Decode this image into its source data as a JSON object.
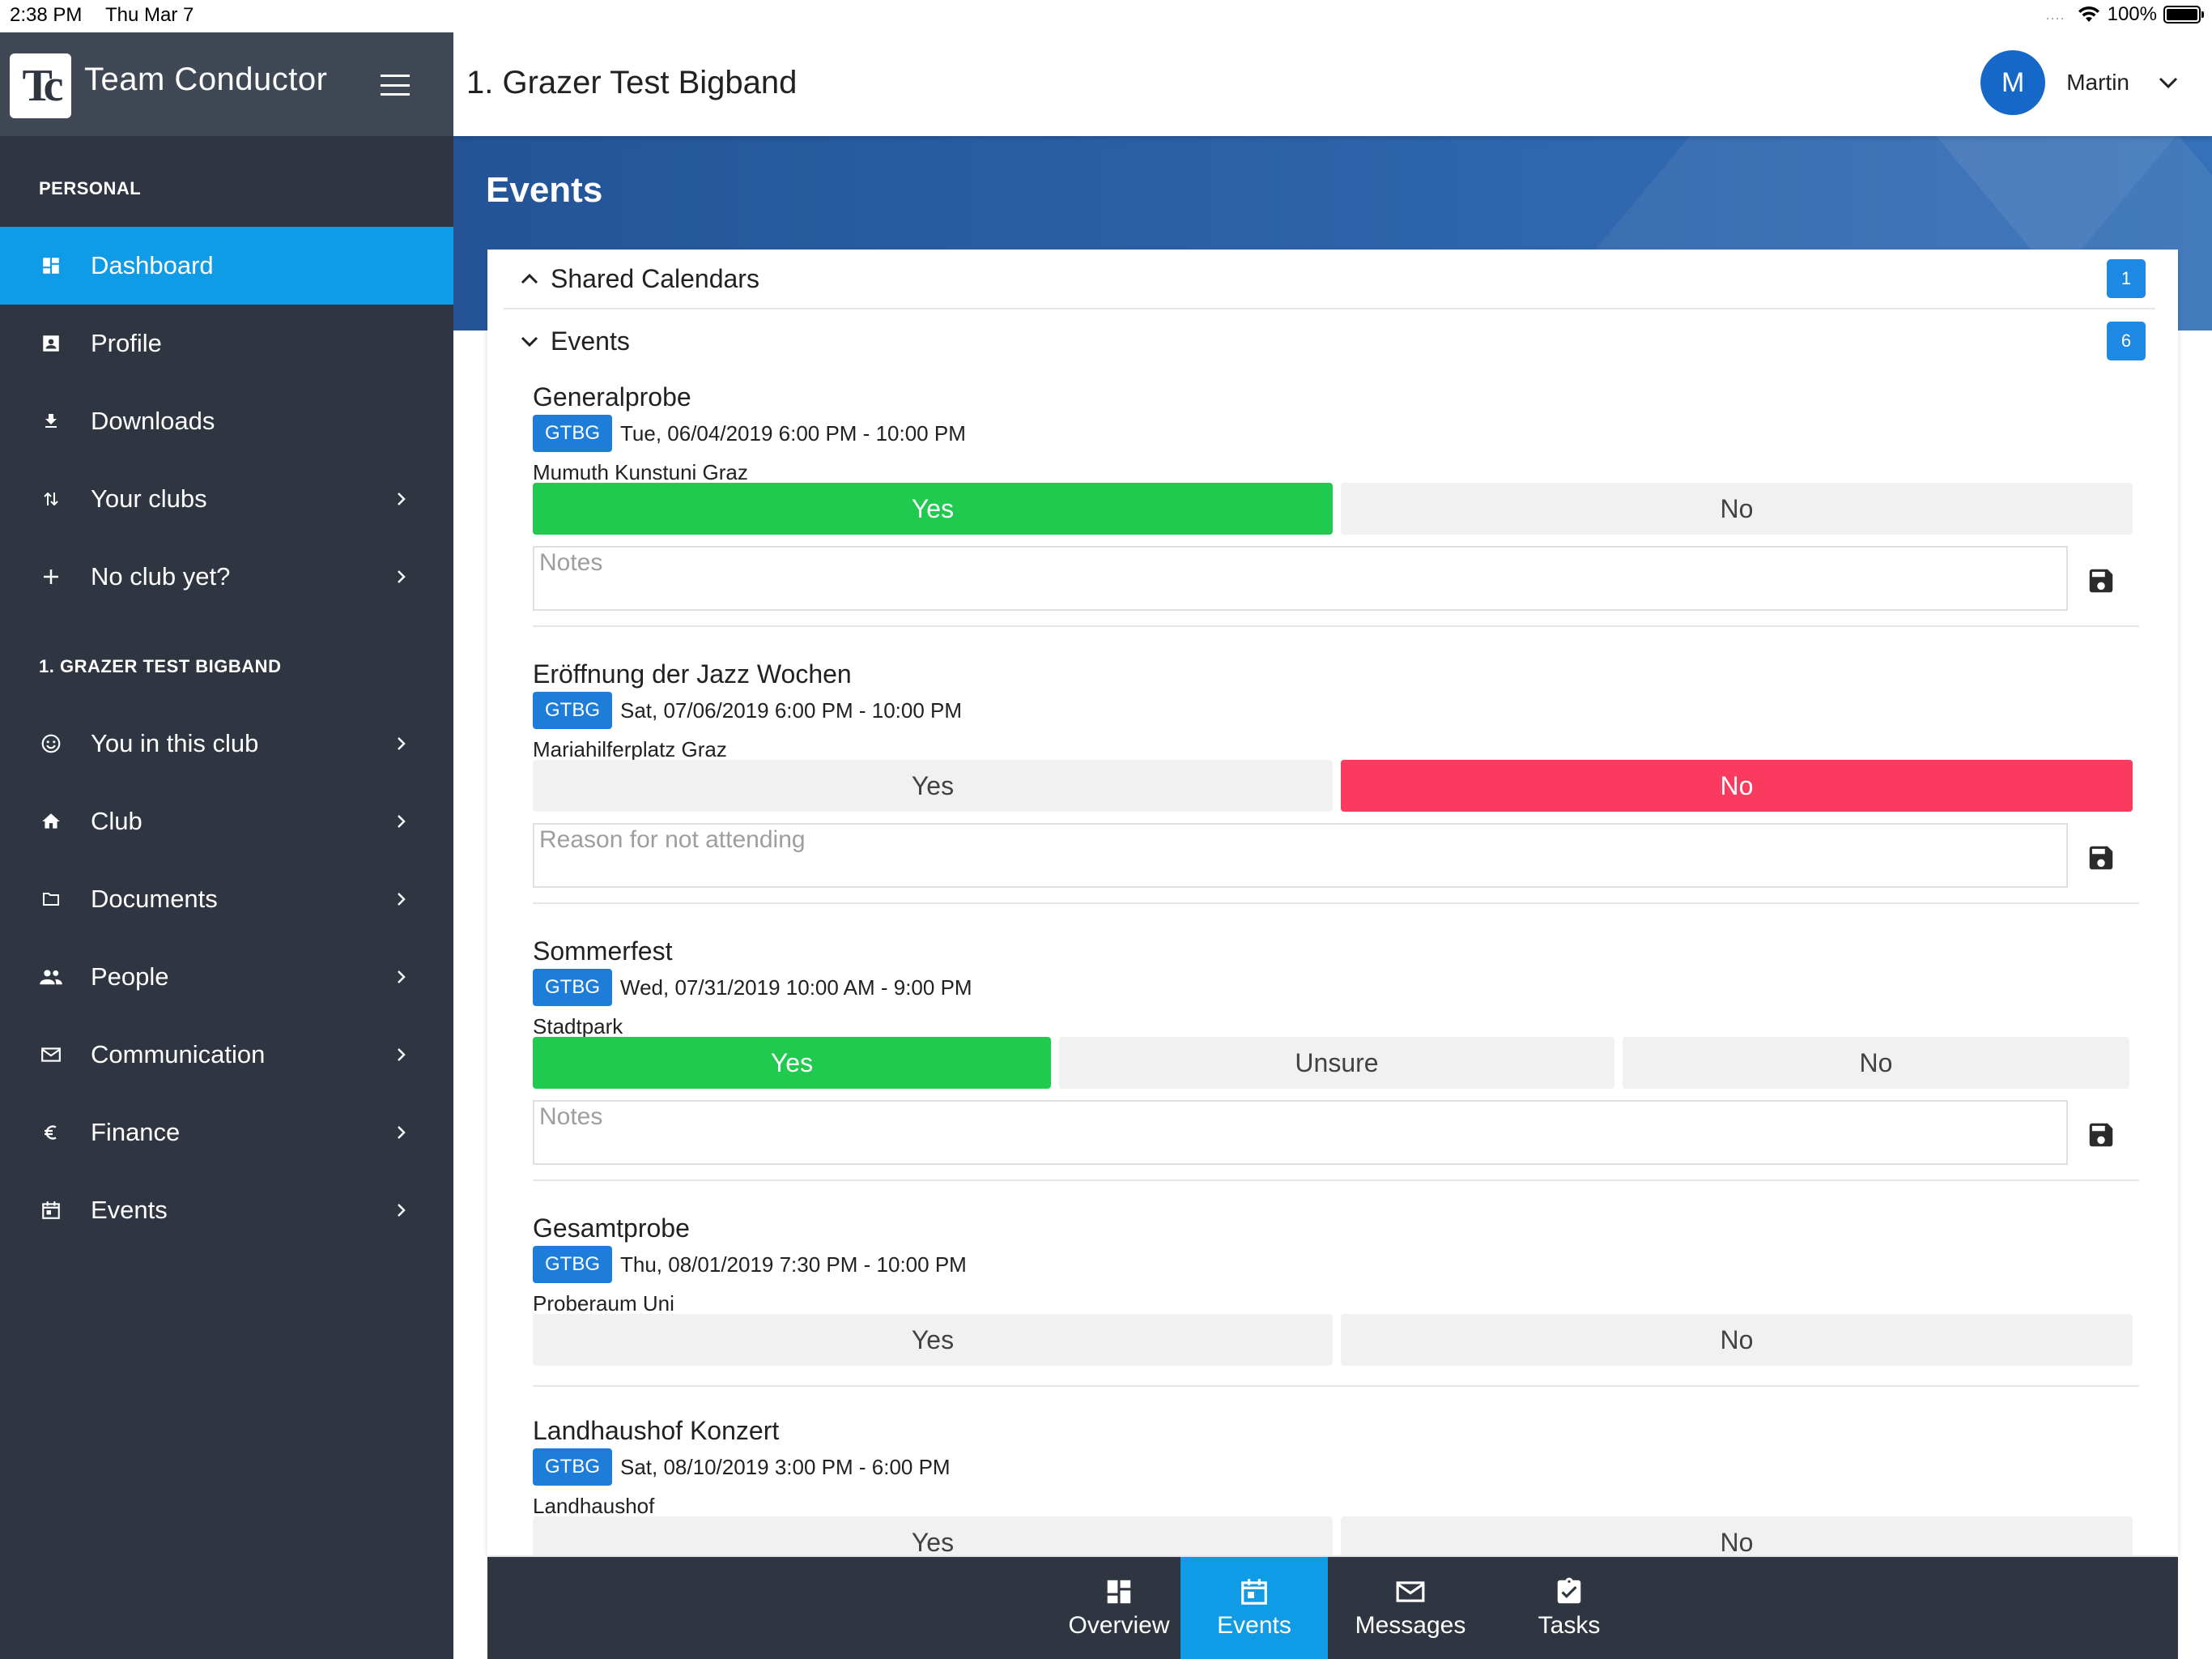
{
  "status_bar": {
    "time": "2:38 PM",
    "date": "Thu Mar 7",
    "dots": "....",
    "battery": "100%"
  },
  "sidebar": {
    "app_title": "Team Conductor",
    "logo_text": "Tc",
    "section_personal": "PERSONAL",
    "personal_items": [
      {
        "label": "Dashboard",
        "icon": "dashboard-icon"
      },
      {
        "label": "Profile",
        "icon": "profile-icon"
      },
      {
        "label": "Downloads",
        "icon": "download-icon"
      },
      {
        "label": "Your clubs",
        "icon": "clubs-icon"
      },
      {
        "label": "No club yet?",
        "icon": "plus-icon"
      }
    ],
    "section_club": "1. GRAZER TEST BIGBAND",
    "club_items": [
      {
        "label": "You in this club",
        "icon": "smile-icon"
      },
      {
        "label": "Club",
        "icon": "home-icon"
      },
      {
        "label": "Documents",
        "icon": "folder-icon"
      },
      {
        "label": "People",
        "icon": "people-icon"
      },
      {
        "label": "Communication",
        "icon": "mail-icon"
      },
      {
        "label": "Finance",
        "icon": "euro-icon"
      },
      {
        "label": "Events",
        "icon": "calendar-icon"
      }
    ]
  },
  "header": {
    "club_title": "1. Grazer Test Bigband",
    "user_initial": "M",
    "user_name": "Martin"
  },
  "page": {
    "heading": "Events"
  },
  "panels": {
    "shared_calendars": {
      "title": "Shared Calendars",
      "count": "1"
    },
    "events": {
      "title": "Events",
      "count": "6"
    }
  },
  "events": [
    {
      "name": "Generalprobe",
      "club": "GTBG",
      "date": "Tue, 06/04/2019 6:00 PM - 10:00 PM",
      "location": "Mumuth Kunstuni Graz",
      "yes": "Yes",
      "no": "No",
      "notes_placeholder": "Notes"
    },
    {
      "name": "Eröffnung der Jazz Wochen",
      "club": "GTBG",
      "date": "Sat, 07/06/2019 6:00 PM - 10:00 PM",
      "location": "Mariahilferplatz Graz",
      "yes": "Yes",
      "no": "No",
      "notes_placeholder": "Reason for not attending"
    },
    {
      "name": "Sommerfest",
      "club": "GTBG",
      "date": "Wed, 07/31/2019 10:00 AM - 9:00 PM",
      "location": "Stadtpark",
      "yes": "Yes",
      "unsure": "Unsure",
      "no": "No",
      "notes_placeholder": "Notes"
    },
    {
      "name": "Gesamtprobe",
      "club": "GTBG",
      "date": "Thu, 08/01/2019 7:30 PM - 10:00 PM",
      "location": "Proberaum Uni",
      "yes": "Yes",
      "no": "No"
    },
    {
      "name": "Landhaushof Konzert",
      "club": "GTBG",
      "date": "Sat, 08/10/2019 3:00 PM - 6:00 PM",
      "location": "Landhaushof",
      "yes": "Yes",
      "no": "No"
    }
  ],
  "tabbar": {
    "tabs": [
      {
        "label": "Overview",
        "icon": "overview-icon"
      },
      {
        "label": "Events",
        "icon": "calendar-icon"
      },
      {
        "label": "Messages",
        "icon": "mail-icon"
      },
      {
        "label": "Tasks",
        "icon": "clipboard-check-icon"
      }
    ]
  },
  "colors": {
    "sidebar_bg": "#2f3541",
    "active_accent": "#0f9be6",
    "yes_green": "#1fca4e",
    "no_red": "#fb3a5f",
    "badge_blue": "#1e7dd8",
    "banner_blue": "#2e64ab"
  }
}
